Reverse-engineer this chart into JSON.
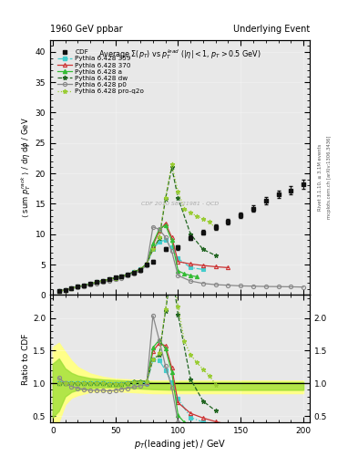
{
  "title_left": "1960 GeV ppbar",
  "title_right": "Underlying Event",
  "plot_title": "Average $\\Sigma(p_T)$ vs $p_T^{lead}$ ($|\\eta| < 1$, $p_T > 0.5$ GeV)",
  "ylabel_main": "$\\langle$ sum $p_T^{rack}$ $\\rangle$ / d$\\eta$ d$\\phi$ / GeV",
  "ylabel_ratio": "Ratio to CDF",
  "xlabel": "$p_T$(leading jet) / GeV",
  "right_label1": "Rivet 3.1.10, ≥ 3.1M events",
  "right_label2": "mcplots.cern.ch [arXiv:1306.3436]",
  "ylim_main": [
    0,
    42
  ],
  "ylim_ratio": [
    0.4,
    2.35
  ],
  "xlim": [
    -2,
    205
  ],
  "yticks_main": [
    0,
    5,
    10,
    15,
    20,
    25,
    30,
    35,
    40
  ],
  "yticks_ratio": [
    0.5,
    1.0,
    1.5,
    2.0
  ],
  "xticks": [
    0,
    50,
    100,
    150,
    200
  ],
  "cdf_x": [
    5,
    10,
    15,
    20,
    25,
    30,
    35,
    40,
    45,
    50,
    55,
    60,
    65,
    70,
    75,
    80,
    90,
    100,
    110,
    120,
    130,
    140,
    150,
    160,
    170,
    180,
    190,
    200
  ],
  "cdf_y": [
    0.6,
    0.85,
    1.1,
    1.35,
    1.6,
    1.85,
    2.1,
    2.35,
    2.6,
    2.85,
    3.1,
    3.4,
    3.7,
    4.1,
    5.0,
    5.5,
    7.5,
    7.8,
    9.4,
    10.3,
    11.2,
    12.1,
    13.1,
    14.2,
    15.5,
    16.5,
    17.2,
    18.2
  ],
  "cdf_yerr": [
    0.08,
    0.08,
    0.08,
    0.08,
    0.08,
    0.08,
    0.08,
    0.08,
    0.08,
    0.08,
    0.08,
    0.1,
    0.1,
    0.12,
    0.15,
    0.2,
    0.3,
    0.35,
    0.4,
    0.4,
    0.45,
    0.45,
    0.5,
    0.5,
    0.55,
    0.6,
    0.65,
    0.7
  ],
  "py359_x": [
    5,
    10,
    15,
    20,
    25,
    30,
    35,
    40,
    45,
    50,
    55,
    60,
    65,
    70,
    75,
    80,
    85,
    90,
    95,
    100,
    110,
    120
  ],
  "py359_y": [
    0.6,
    0.85,
    1.1,
    1.35,
    1.6,
    1.85,
    2.1,
    2.35,
    2.58,
    2.82,
    3.08,
    3.42,
    3.78,
    4.2,
    5.0,
    7.5,
    8.8,
    9.0,
    7.8,
    6.0,
    4.5,
    4.2
  ],
  "py370_x": [
    5,
    10,
    15,
    20,
    25,
    30,
    35,
    40,
    45,
    50,
    55,
    60,
    65,
    70,
    75,
    80,
    85,
    90,
    95,
    100,
    110,
    120,
    130,
    140
  ],
  "py370_y": [
    0.6,
    0.85,
    1.1,
    1.35,
    1.6,
    1.85,
    2.1,
    2.35,
    2.58,
    2.82,
    3.08,
    3.42,
    3.8,
    4.25,
    5.1,
    8.2,
    10.5,
    11.8,
    9.5,
    5.5,
    5.1,
    4.85,
    4.65,
    4.5
  ],
  "pya_x": [
    5,
    10,
    15,
    20,
    25,
    30,
    35,
    40,
    45,
    50,
    55,
    60,
    65,
    70,
    75,
    80,
    85,
    90,
    95,
    100,
    105,
    110,
    115
  ],
  "pya_y": [
    0.6,
    0.85,
    1.1,
    1.35,
    1.6,
    1.85,
    2.1,
    2.35,
    2.58,
    2.82,
    3.08,
    3.42,
    3.8,
    4.25,
    5.15,
    8.5,
    10.8,
    11.5,
    9.0,
    4.0,
    3.5,
    3.2,
    3.0
  ],
  "pydw_x": [
    5,
    10,
    15,
    20,
    25,
    30,
    35,
    40,
    45,
    50,
    55,
    60,
    65,
    70,
    75,
    80,
    85,
    90,
    95,
    100,
    110,
    120,
    130
  ],
  "pydw_y": [
    0.6,
    0.85,
    1.1,
    1.35,
    1.6,
    1.85,
    2.1,
    2.35,
    2.58,
    2.82,
    3.08,
    3.42,
    3.78,
    4.2,
    5.15,
    7.5,
    9.3,
    15.8,
    21.0,
    16.0,
    10.0,
    7.5,
    6.5
  ],
  "pyp0_x": [
    5,
    10,
    15,
    20,
    25,
    30,
    35,
    40,
    45,
    50,
    55,
    60,
    65,
    70,
    75,
    80,
    85,
    90,
    95,
    100,
    110,
    120,
    130,
    140,
    150,
    160,
    170,
    180,
    190,
    200
  ],
  "pyp0_y": [
    0.65,
    0.85,
    1.05,
    1.25,
    1.45,
    1.65,
    1.88,
    2.1,
    2.3,
    2.55,
    2.82,
    3.15,
    3.5,
    3.95,
    4.92,
    11.2,
    10.8,
    9.5,
    7.2,
    3.2,
    2.3,
    1.9,
    1.7,
    1.6,
    1.5,
    1.45,
    1.4,
    1.38,
    1.35,
    1.3
  ],
  "pyproq2o_x": [
    5,
    10,
    15,
    20,
    25,
    30,
    35,
    40,
    45,
    50,
    55,
    60,
    65,
    70,
    75,
    80,
    85,
    90,
    95,
    100,
    105,
    110,
    115,
    120,
    125,
    130
  ],
  "pyproq2o_y": [
    0.6,
    0.85,
    1.1,
    1.35,
    1.6,
    1.85,
    2.1,
    2.35,
    2.58,
    2.82,
    3.08,
    3.42,
    3.78,
    4.2,
    5.15,
    7.5,
    9.5,
    16.0,
    21.5,
    17.0,
    14.2,
    13.5,
    13.0,
    12.5,
    12.0,
    11.0
  ],
  "yellow_band_x": [
    0,
    5,
    10,
    15,
    20,
    30,
    40,
    50,
    60,
    70,
    80,
    100,
    120,
    150,
    200
  ],
  "yellow_band_lo": [
    0.35,
    0.42,
    0.68,
    0.78,
    0.82,
    0.87,
    0.88,
    0.88,
    0.87,
    0.86,
    0.85,
    0.85,
    0.85,
    0.85,
    0.85
  ],
  "yellow_band_hi": [
    1.55,
    1.62,
    1.48,
    1.35,
    1.25,
    1.15,
    1.1,
    1.07,
    1.06,
    1.05,
    1.04,
    1.04,
    1.04,
    1.04,
    1.04
  ],
  "green_band_x": [
    0,
    5,
    10,
    15,
    20,
    30,
    40,
    50,
    60,
    70,
    80,
    100,
    120,
    150,
    200
  ],
  "green_band_lo": [
    0.48,
    0.58,
    0.8,
    0.87,
    0.9,
    0.93,
    0.94,
    0.94,
    0.93,
    0.92,
    0.91,
    0.9,
    0.9,
    0.9,
    0.9
  ],
  "green_band_hi": [
    1.3,
    1.38,
    1.23,
    1.16,
    1.12,
    1.08,
    1.06,
    1.05,
    1.04,
    1.03,
    1.02,
    1.02,
    1.02,
    1.02,
    1.02
  ],
  "color_359": "#44cccc",
  "color_370": "#cc3333",
  "color_a": "#33bb33",
  "color_dw": "#226622",
  "color_p0": "#888888",
  "color_proq2o": "#99cc33",
  "color_cdf": "#111111",
  "bg_color": "#ffffff",
  "panel_bg": "#e8e8e8"
}
